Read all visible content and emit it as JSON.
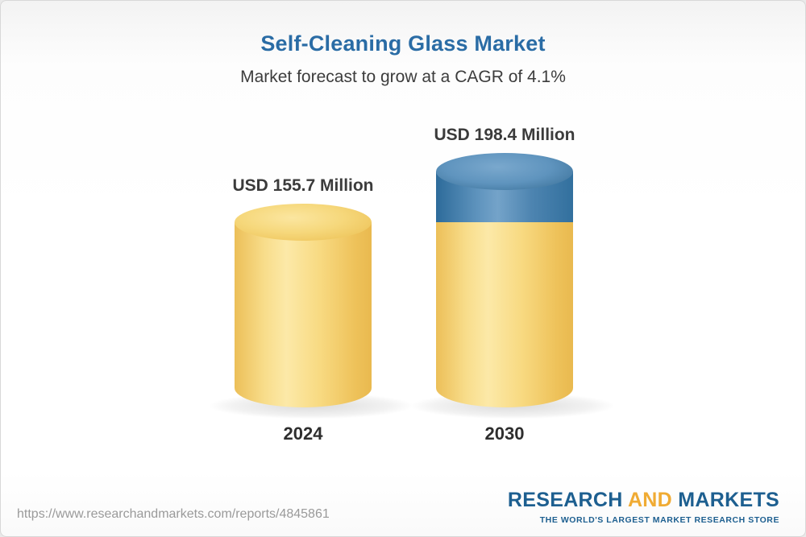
{
  "header": {
    "title": "Self-Cleaning Glass Market",
    "subtitle": "Market forecast to grow at a CAGR of 4.1%"
  },
  "chart_data": {
    "type": "bar",
    "categories": [
      "2024",
      "2030"
    ],
    "values": [
      155.7,
      198.4
    ],
    "unit": "USD Million",
    "data_labels": [
      "USD 155.7 Million",
      "USD 198.4 Million"
    ],
    "title": "Self-Cleaning Glass Market",
    "subtitle": "Market forecast to grow at a CAGR of 4.1%",
    "cagr": "4.1%",
    "legend": "none",
    "grid": false,
    "colors": {
      "base_segment": "#F6D87C",
      "growth_segment": "#4A82AE"
    }
  },
  "footer": {
    "url": "https://www.researchandmarkets.com/reports/4845861"
  },
  "logo": {
    "research": "RESEARCH",
    "and": "AND",
    "markets": "MARKETS",
    "tagline": "THE WORLD'S LARGEST MARKET RESEARCH STORE"
  }
}
